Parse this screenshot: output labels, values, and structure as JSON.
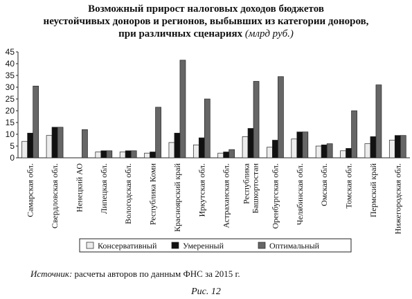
{
  "chart_data": {
    "type": "bar",
    "title_line1": "Возможный прирост налоговых доходов бюджетов",
    "title_line2": "неустойчивых доноров и регионов, выбывших из категории доноров,",
    "title_line3": "при различных сценариях",
    "title_units": "(млрд руб.)",
    "ylim": [
      0,
      45
    ],
    "yticks": [
      "0",
      "5",
      "10",
      "15",
      "20",
      "25",
      "30",
      "35",
      "40",
      "45"
    ],
    "categories": [
      [
        "Самарская обл."
      ],
      [
        "Свердловская обл."
      ],
      [
        "Ненецкий АО"
      ],
      [
        "Липецкая обл."
      ],
      [
        "Вологодская обл."
      ],
      [
        "Республика Коми"
      ],
      [
        "Красноярский край"
      ],
      [
        "Иркутская обл."
      ],
      [
        "Астраханская обл."
      ],
      [
        "Республика",
        "Башкортостан"
      ],
      [
        "Оренбургская обл."
      ],
      [
        "Челябинская обл."
      ],
      [
        "Омская обл."
      ],
      [
        "Томская обл."
      ],
      [
        "Пермский край"
      ],
      [
        "Нижегородская обл."
      ]
    ],
    "series": [
      {
        "name": "Консервативный",
        "color": "#ececec",
        "values": [
          7,
          9.5,
          0,
          2.5,
          2.5,
          2,
          6.5,
          5.5,
          2,
          9,
          4.5,
          8,
          5,
          3,
          6,
          7.5
        ]
      },
      {
        "name": "Умеренный",
        "color": "#111111",
        "values": [
          10.5,
          13,
          0,
          3,
          3,
          2.5,
          10.5,
          8.5,
          2.5,
          12.5,
          7.5,
          11,
          5.5,
          4,
          9,
          9.5
        ]
      },
      {
        "name": "Оптимальный",
        "color": "#666666",
        "values": [
          30.5,
          13,
          12,
          3,
          3,
          21.5,
          41.5,
          25,
          3.5,
          32.5,
          34.5,
          11,
          6,
          20,
          31,
          9.5
        ]
      }
    ],
    "legend_position": "bottom",
    "grid": false
  },
  "source": {
    "lead": "Источник:",
    "text": " расчеты авторов по данным ФНС за 2015 г."
  },
  "caption": "Рис. 12"
}
